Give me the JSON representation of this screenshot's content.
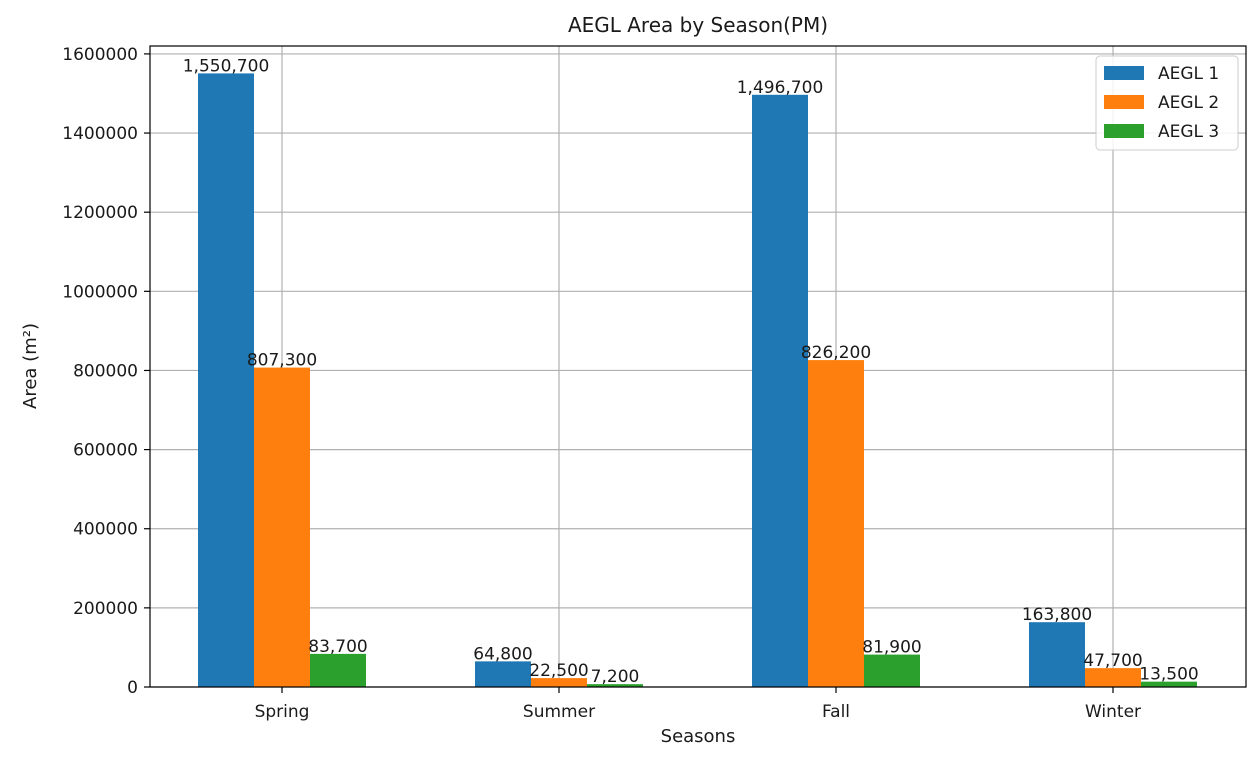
{
  "chart_data": {
    "type": "bar",
    "title": "AEGL Area by Season(PM)",
    "xlabel": "Seasons",
    "ylabel": "Area (m²)",
    "categories": [
      "Spring",
      "Summer",
      "Fall",
      "Winter"
    ],
    "series": [
      {
        "name": "AEGL 1",
        "color": "#1f77b4",
        "values": [
          1550700,
          64800,
          1496700,
          163800
        ],
        "labels": [
          "1,550,700",
          "64,800",
          "1,496,700",
          "163,800"
        ]
      },
      {
        "name": "AEGL 2",
        "color": "#ff7f0e",
        "values": [
          807300,
          22500,
          826200,
          47700
        ],
        "labels": [
          "807,300",
          "22,500",
          "826,200",
          "47,700"
        ]
      },
      {
        "name": "AEGL 3",
        "color": "#2ca02c",
        "values": [
          83700,
          7200,
          81900,
          13500
        ],
        "labels": [
          "83,700",
          "7,200",
          "81,900",
          "13,500"
        ]
      }
    ],
    "ylim": [
      0,
      1620000
    ],
    "yticks": [
      0,
      200000,
      400000,
      600000,
      800000,
      1000000,
      1200000,
      1400000,
      1600000
    ],
    "ytick_labels": [
      "0",
      "200000",
      "400000",
      "600000",
      "800000",
      "1000000",
      "1200000",
      "1400000",
      "1600000"
    ],
    "grid": true,
    "legend_position": "top-right"
  }
}
